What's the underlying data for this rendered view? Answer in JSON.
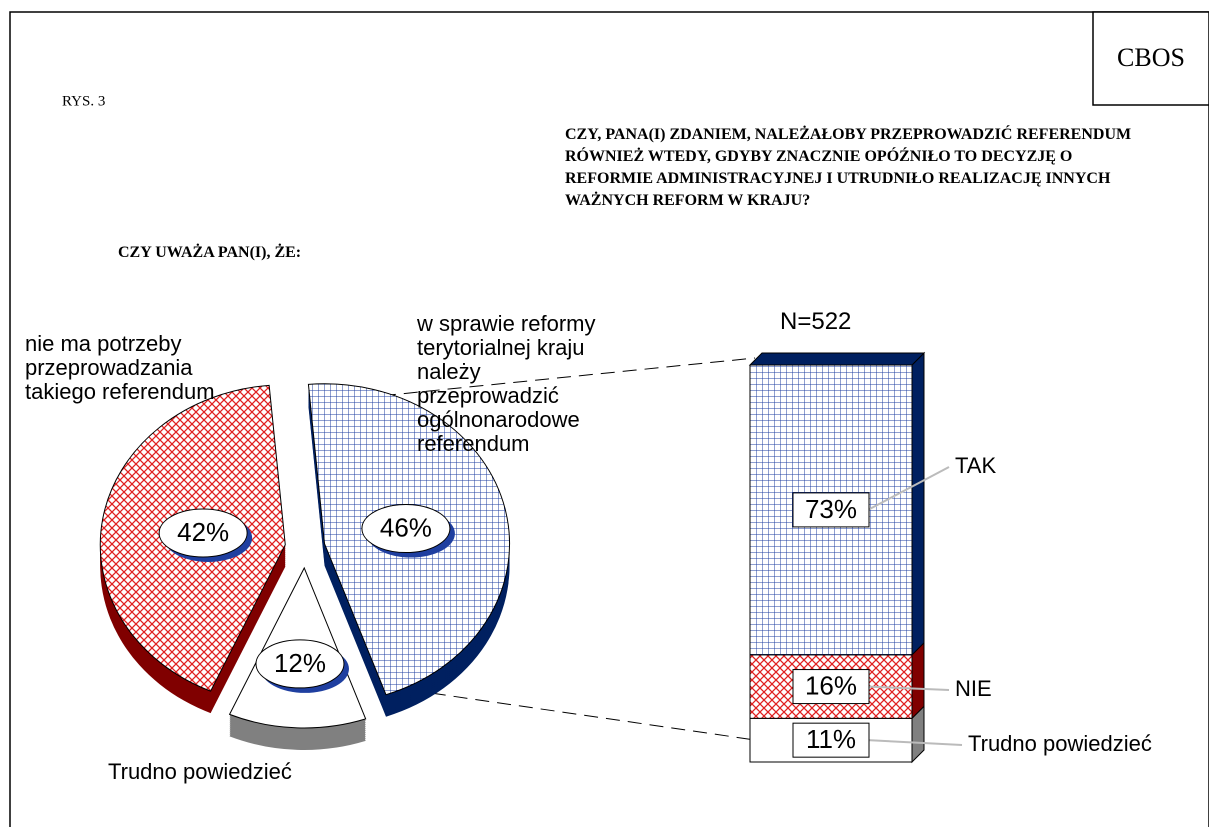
{
  "header": {
    "logo": "CBOS",
    "figure": "RYS. 3"
  },
  "chart_data": [
    {
      "type": "pie",
      "title": "CZY UWAŻA PAN(I), ŻE:",
      "categories": [
        "w sprawie reformy terytorialnej kraju należy przeprowadzić ogólnonarodowe referendum",
        "Trudno powiedzieć",
        "nie ma potrzeby przeprowadzania takiego referendum"
      ],
      "values": [
        46,
        12,
        42
      ],
      "value_labels": [
        "46%",
        "12%",
        "42%"
      ],
      "colors": [
        "#1f3fa0",
        "#ffffff",
        "#e02020"
      ]
    },
    {
      "type": "bar",
      "title": "CZY, PANA(I) ZDANIEM, NALEŻAŁOBY PRZEPROWADZIĆ REFERENDUM RÓWNIEŻ WTEDY, GDYBY ZNACZNIE OPÓŹNIŁO TO DECYZJĘ O REFORMIE ADMINISTRACYJNEJ I UTRUDNIŁO REALIZACJĘ INNYCH WAŻNYCH REFORM W KRAJU?",
      "subtitle": "N=522",
      "categories": [
        "Trudno powiedzieć",
        "NIE",
        "TAK"
      ],
      "values": [
        11,
        16,
        73
      ],
      "value_labels": [
        "11%",
        "16%",
        "73%"
      ],
      "colors": [
        "#ffffff",
        "#e02020",
        "#1f3fa0"
      ]
    }
  ]
}
